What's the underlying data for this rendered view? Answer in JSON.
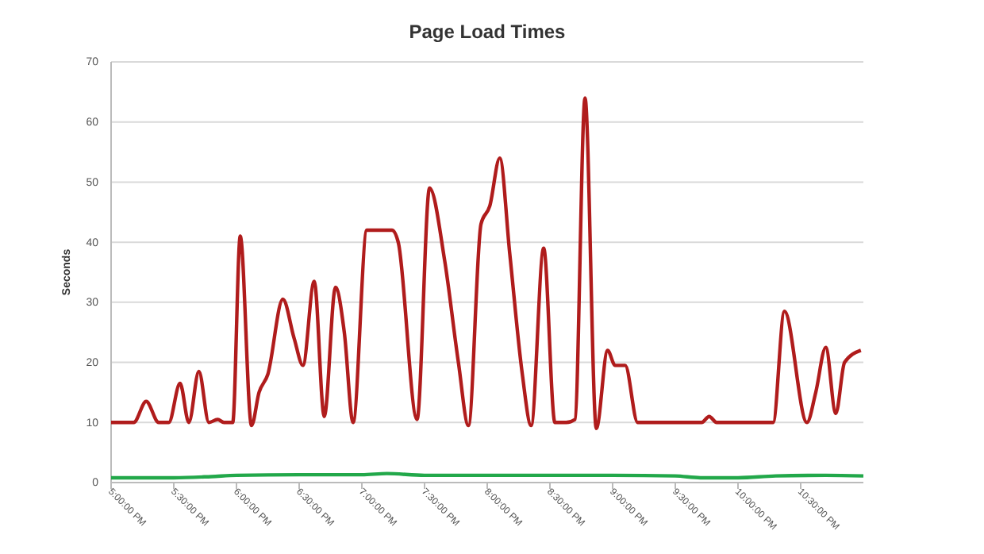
{
  "chart_data": {
    "type": "line",
    "title": "Page Load Times",
    "ylabel": "Seconds",
    "xlim": [
      17,
      23
    ],
    "ylim": [
      0,
      70
    ],
    "yticks": [
      0,
      10,
      20,
      30,
      40,
      50,
      60,
      70
    ],
    "xticks": [
      {
        "value": 17,
        "label": "5:00:00 PM"
      },
      {
        "value": 17.5,
        "label": "5:30:00 PM"
      },
      {
        "value": 18,
        "label": "6:00:00 PM"
      },
      {
        "value": 18.5,
        "label": "6:30:00 PM"
      },
      {
        "value": 19,
        "label": "7:00:00 PM"
      },
      {
        "value": 19.5,
        "label": "7:30:00 PM"
      },
      {
        "value": 20,
        "label": "8:00:00 PM"
      },
      {
        "value": 20.5,
        "label": "8:30:00 PM"
      },
      {
        "value": 21,
        "label": "9:00:00 PM"
      },
      {
        "value": 21.5,
        "label": "9:30:00 PM"
      },
      {
        "value": 22,
        "label": "10:00:00 PM"
      },
      {
        "value": 22.5,
        "label": "10:30:00 PM"
      }
    ],
    "grid": "y",
    "marker": "none",
    "line_style": "solid",
    "series": [
      {
        "color": "#b01c1c",
        "x": [
          17.0,
          17.15,
          17.18,
          17.28,
          17.38,
          17.46,
          17.55,
          17.62,
          17.7,
          17.78,
          17.85,
          17.9,
          17.97,
          18.03,
          18.12,
          18.18,
          18.25,
          18.37,
          18.46,
          18.53,
          18.62,
          18.7,
          18.79,
          18.86,
          18.93,
          19.04,
          19.11,
          19.24,
          19.29,
          19.44,
          19.54,
          19.66,
          19.77,
          19.85,
          19.95,
          20.02,
          20.1,
          20.18,
          20.28,
          20.35,
          20.45,
          20.54,
          20.63,
          20.7,
          20.78,
          20.87,
          20.96,
          21.02,
          21.1,
          21.2,
          21.33,
          21.71,
          21.77,
          21.83,
          21.96,
          22.28,
          22.37,
          22.55,
          22.62,
          22.7,
          22.78,
          22.85,
          22.98
        ],
        "values": [
          10,
          10,
          10,
          13.5,
          10,
          10,
          16.5,
          10,
          18.5,
          10,
          10.5,
          10,
          10,
          41,
          9.5,
          15,
          18,
          30.5,
          24,
          19.5,
          33.5,
          11,
          32.5,
          25,
          10,
          42,
          42,
          42,
          40,
          10.5,
          49,
          37,
          20,
          9.5,
          43,
          46,
          54,
          38,
          18,
          9.5,
          39,
          10,
          10,
          10.5,
          64,
          9,
          22,
          19.5,
          19.5,
          10,
          10,
          10,
          11,
          10,
          10,
          10,
          28.5,
          10,
          15,
          22.5,
          11.5,
          20,
          22
        ]
      },
      {
        "color": "#22a84a",
        "x": [
          17.0,
          17.5,
          17.8,
          18.0,
          18.5,
          19.0,
          19.2,
          19.5,
          20.0,
          20.5,
          21.0,
          21.5,
          21.7,
          22.0,
          22.3,
          22.7,
          23.0
        ],
        "values": [
          0.8,
          0.8,
          1.0,
          1.2,
          1.3,
          1.3,
          1.5,
          1.2,
          1.2,
          1.2,
          1.2,
          1.1,
          0.8,
          0.8,
          1.1,
          1.2,
          1.1
        ]
      }
    ]
  }
}
